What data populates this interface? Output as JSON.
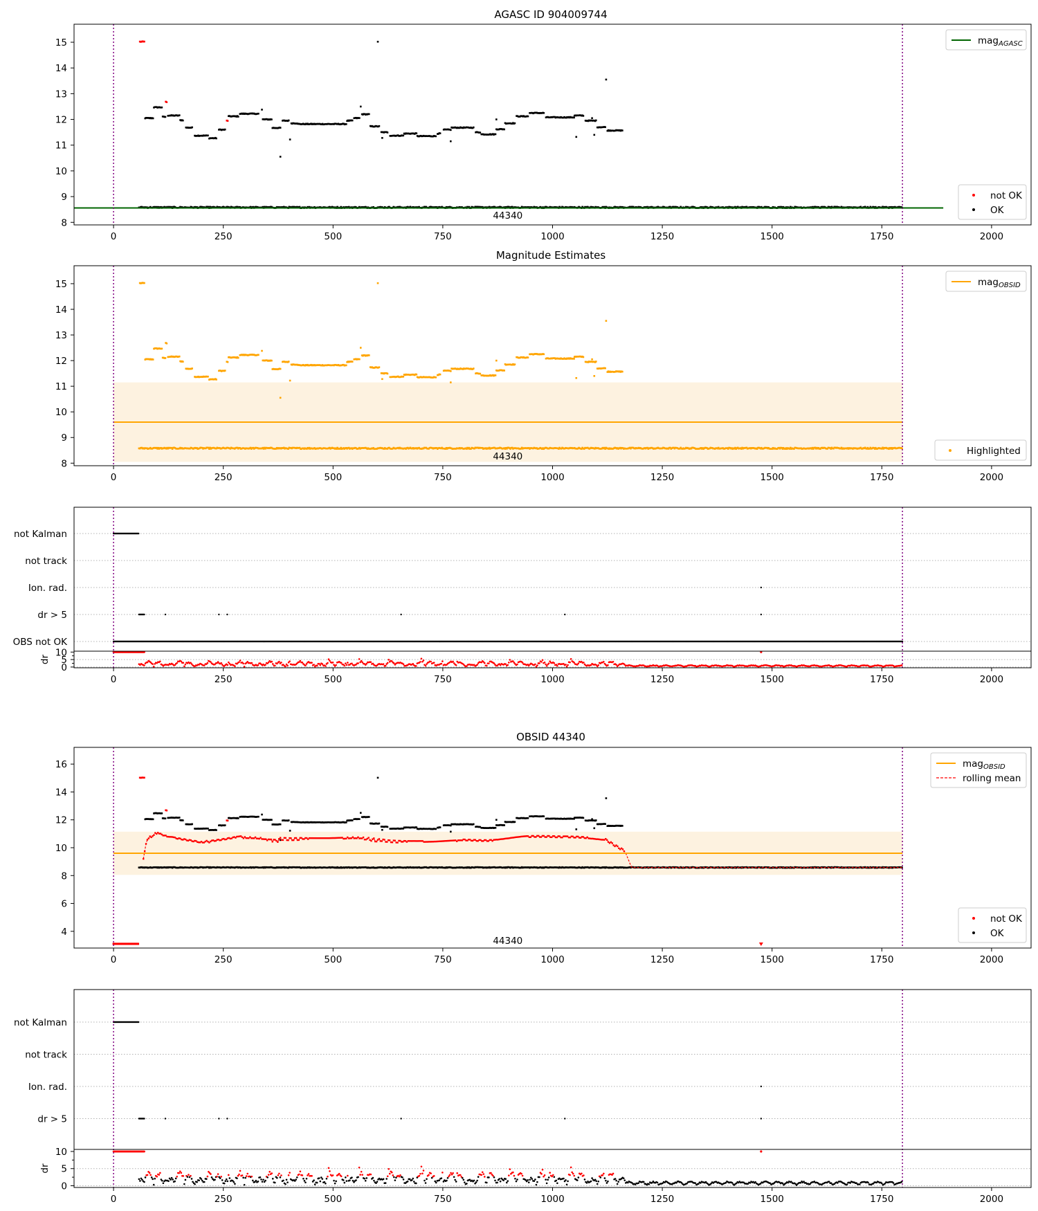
{
  "figure": {
    "title_top": "AGASC ID 904009744",
    "title_est": "Magnitude Estimates",
    "title_obs": "OBSID 44340",
    "obsid_label": "44340"
  },
  "colors": {
    "not_ok": "#ff0000",
    "ok": "#000000",
    "agasc_line": "#006400",
    "obsid_line": "#ffa500",
    "band": "#fdf2e0",
    "boundary": "#800080",
    "rolling": "#ff0000",
    "grid": "#b0b0b0"
  },
  "chart_data": [
    {
      "id": "agasc",
      "type": "scatter",
      "title": "AGASC ID 904009744",
      "xlim": [
        -90,
        2090
      ],
      "ylim": [
        7.9,
        15.7
      ],
      "yticks": [
        8,
        9,
        10,
        11,
        12,
        13,
        14,
        15
      ],
      "xticks": [
        0,
        250,
        500,
        750,
        1000,
        1250,
        1500,
        1750,
        2000
      ],
      "lines": [
        {
          "name": "mag_AGASC",
          "y": 8.56,
          "x": [
            -90,
            1890
          ],
          "color": "agasc_line"
        }
      ],
      "legend_upper": [
        {
          "label": "mag",
          "sub": "AGASC",
          "kind": "line",
          "color": "agasc_line"
        }
      ],
      "legend_lower": [
        {
          "label": "not OK",
          "kind": "dot",
          "color": "not_ok"
        },
        {
          "label": "OK",
          "kind": "dot",
          "color": "ok"
        }
      ],
      "boundaries": [
        0,
        1797
      ],
      "obs_label": "44340",
      "obs_label_x": 898,
      "obs_label_y": 8.28,
      "notok_color": "not_ok",
      "ok_color": "ok"
    },
    {
      "id": "estimates",
      "type": "scatter",
      "title": "Magnitude Estimates",
      "xlim": [
        -90,
        2090
      ],
      "ylim": [
        7.9,
        15.7
      ],
      "yticks": [
        8,
        9,
        10,
        11,
        12,
        13,
        14,
        15
      ],
      "xticks": [
        0,
        250,
        500,
        750,
        1000,
        1250,
        1500,
        1750,
        2000
      ],
      "lines": [
        {
          "name": "mag_OBSID",
          "y": 9.6,
          "x": [
            0,
            1797
          ],
          "color": "obsid_line"
        }
      ],
      "band": {
        "x": [
          0,
          1797
        ],
        "y": [
          8.05,
          11.15
        ]
      },
      "legend_upper": [
        {
          "label": "mag",
          "sub": "OBSID",
          "kind": "line",
          "color": "obsid_line"
        }
      ],
      "legend_lower": [
        {
          "label": "Highlighted",
          "kind": "dot",
          "color": "obsid_line"
        }
      ],
      "boundaries": [
        0,
        1797
      ],
      "obs_label": "44340",
      "obs_label_x": 898,
      "obs_label_y": 8.28,
      "notok_color": "obsid_line",
      "ok_color": "obsid_line"
    },
    {
      "id": "flags1",
      "type": "scatter",
      "xlim": [
        -90,
        2090
      ],
      "categories": [
        "not Kalman",
        "not track",
        "Ion. rad.",
        "dr > 5",
        "OBS not OK"
      ],
      "flag_points": {
        "not Kalman": {
          "ranges": [
            [
              0,
              57
            ]
          ],
          "singles": []
        },
        "not track": {
          "ranges": [],
          "singles": []
        },
        "Ion. rad.": {
          "ranges": [],
          "singles": [
            1475
          ]
        },
        "dr > 5": {
          "ranges": [
            [
              58,
              70
            ]
          ],
          "singles": [
            118,
            240,
            259,
            655,
            1028,
            1475
          ]
        },
        "OBS not OK": {
          "ranges": [
            [
              0,
              1797
            ]
          ],
          "singles": []
        }
      },
      "dr_ylabel": "dr",
      "dr_ylim": [
        -0.5,
        10.6
      ],
      "dr_yticks": [
        0,
        5,
        10
      ],
      "dr_color_mode": "red",
      "xticks": [
        0,
        250,
        500,
        750,
        1000,
        1250,
        1500,
        1750,
        2000
      ],
      "boundaries": [
        0,
        1797
      ]
    },
    {
      "id": "obsid",
      "type": "scatter",
      "title": "OBSID 44340",
      "xlim": [
        -90,
        2090
      ],
      "ylim": [
        2.8,
        17.2
      ],
      "yticks": [
        4,
        6,
        8,
        10,
        12,
        14,
        16
      ],
      "xticks": [
        0,
        250,
        500,
        750,
        1000,
        1250,
        1500,
        1750,
        2000
      ],
      "lines": [
        {
          "name": "mag_OBSID",
          "y": 9.6,
          "x": [
            0,
            1797
          ],
          "color": "obsid_line"
        }
      ],
      "band": {
        "x": [
          0,
          1797
        ],
        "y": [
          8.05,
          11.15
        ]
      },
      "legend_upper": [
        {
          "label": "mag",
          "sub": "OBSID",
          "kind": "line",
          "color": "obsid_line"
        },
        {
          "label": "rolling mean",
          "kind": "dash",
          "color": "rolling"
        }
      ],
      "legend_lower": [
        {
          "label": "not OK",
          "kind": "dot",
          "color": "not_ok"
        },
        {
          "label": "OK",
          "kind": "dot",
          "color": "ok"
        }
      ],
      "boundaries": [
        0,
        1797
      ],
      "obs_label": "44340",
      "obs_label_x": 898,
      "obs_label_y": 3.35,
      "notok_color": "not_ok",
      "ok_color": "ok",
      "floor_value": 3.1
    },
    {
      "id": "flags2",
      "type": "scatter",
      "xlim": [
        -90,
        2090
      ],
      "categories": [
        "not Kalman",
        "not track",
        "Ion. rad.",
        "dr > 5"
      ],
      "flag_points": {
        "not Kalman": {
          "ranges": [
            [
              0,
              57
            ]
          ],
          "singles": []
        },
        "not track": {
          "ranges": [],
          "singles": []
        },
        "Ion. rad.": {
          "ranges": [],
          "singles": [
            1475
          ]
        },
        "dr > 5": {
          "ranges": [
            [
              58,
              70
            ]
          ],
          "singles": [
            118,
            240,
            259,
            655,
            1028,
            1475
          ]
        }
      },
      "dr_ylabel": "dr",
      "dr_ylim": [
        -0.5,
        10.6
      ],
      "dr_yticks": [
        0,
        5,
        10
      ],
      "dr_color_mode": "mixed",
      "xticks": [
        0,
        250,
        500,
        750,
        1000,
        1250,
        1500,
        1750,
        2000
      ],
      "boundaries": [
        0,
        1797
      ]
    }
  ],
  "star_data": {
    "x_start": 0,
    "x_end": 1797,
    "track_start": 58,
    "bright_end": 1165,
    "base_mag": 8.58,
    "not_kalman_end": 57,
    "segments": [
      {
        "x": [
          60,
          70
        ],
        "mag": 15.02,
        "ok": false
      },
      {
        "x": [
          72,
          90
        ],
        "mag": 12.05,
        "ok": true
      },
      {
        "x": [
          92,
          110
        ],
        "mag": 12.47,
        "ok": true
      },
      {
        "x": [
          112,
          118
        ],
        "mag": 12.1,
        "ok": true
      },
      {
        "x": [
          119,
          122
        ],
        "mag": 12.68,
        "ok": false
      },
      {
        "x": [
          124,
          150
        ],
        "mag": 12.15,
        "ok": true
      },
      {
        "x": [
          152,
          158
        ],
        "mag": 11.97,
        "ok": true
      },
      {
        "x": [
          165,
          180
        ],
        "mag": 11.68,
        "ok": true
      },
      {
        "x": [
          185,
          215
        ],
        "mag": 11.37,
        "ok": true
      },
      {
        "x": [
          218,
          235
        ],
        "mag": 11.27,
        "ok": true
      },
      {
        "x": [
          240,
          255
        ],
        "mag": 11.6,
        "ok": true
      },
      {
        "x": [
          258,
          260
        ],
        "mag": 11.95,
        "ok": false
      },
      {
        "x": [
          262,
          285
        ],
        "mag": 12.12,
        "ok": true
      },
      {
        "x": [
          288,
          330
        ],
        "mag": 12.22,
        "ok": true
      },
      {
        "x": [
          340,
          360
        ],
        "mag": 12.0,
        "ok": true
      },
      {
        "x": [
          362,
          380
        ],
        "mag": 11.67,
        "ok": true
      },
      {
        "x": [
          385,
          400
        ],
        "mag": 11.95,
        "ok": true
      },
      {
        "x": [
          405,
          420
        ],
        "mag": 11.85,
        "ok": true
      },
      {
        "x": [
          420,
          530
        ],
        "mag": 11.82,
        "ok": true
      },
      {
        "x": [
          532,
          545
        ],
        "mag": 11.95,
        "ok": true
      },
      {
        "x": [
          548,
          560
        ],
        "mag": 12.05,
        "ok": true
      },
      {
        "x": [
          566,
          582
        ],
        "mag": 12.2,
        "ok": true
      },
      {
        "x": [
          585,
          605
        ],
        "mag": 11.73,
        "ok": true
      },
      {
        "x": [
          610,
          625
        ],
        "mag": 11.5,
        "ok": true
      },
      {
        "x": [
          630,
          660
        ],
        "mag": 11.37,
        "ok": true
      },
      {
        "x": [
          662,
          690
        ],
        "mag": 11.45,
        "ok": true
      },
      {
        "x": [
          692,
          735
        ],
        "mag": 11.35,
        "ok": true
      },
      {
        "x": [
          738,
          745
        ],
        "mag": 11.45,
        "ok": true
      },
      {
        "x": [
          752,
          768
        ],
        "mag": 11.6,
        "ok": true
      },
      {
        "x": [
          770,
          820
        ],
        "mag": 11.68,
        "ok": true
      },
      {
        "x": [
          825,
          835
        ],
        "mag": 11.5,
        "ok": true
      },
      {
        "x": [
          838,
          870
        ],
        "mag": 11.42,
        "ok": true
      },
      {
        "x": [
          872,
          890
        ],
        "mag": 11.62,
        "ok": true
      },
      {
        "x": [
          892,
          915
        ],
        "mag": 11.85,
        "ok": true
      },
      {
        "x": [
          918,
          945
        ],
        "mag": 12.12,
        "ok": true
      },
      {
        "x": [
          948,
          980
        ],
        "mag": 12.25,
        "ok": true
      },
      {
        "x": [
          985,
          1050
        ],
        "mag": 12.08,
        "ok": true
      },
      {
        "x": [
          1050,
          1070
        ],
        "mag": 12.15,
        "ok": true
      },
      {
        "x": [
          1075,
          1100
        ],
        "mag": 11.95,
        "ok": true
      },
      {
        "x": [
          1102,
          1120
        ],
        "mag": 11.7,
        "ok": true
      },
      {
        "x": [
          1125,
          1160
        ],
        "mag": 11.57,
        "ok": true
      }
    ],
    "outliers": [
      {
        "x": 602,
        "mag": 15.02,
        "ok": true
      },
      {
        "x": 1122,
        "mag": 13.55,
        "ok": true
      },
      {
        "x": 380,
        "mag": 10.55,
        "ok": true
      },
      {
        "x": 402,
        "mag": 11.22,
        "ok": true
      },
      {
        "x": 338,
        "mag": 12.38,
        "ok": true
      },
      {
        "x": 563,
        "mag": 12.5,
        "ok": true
      },
      {
        "x": 1054,
        "mag": 11.32,
        "ok": true
      },
      {
        "x": 1095,
        "mag": 11.4,
        "ok": true
      },
      {
        "x": 768,
        "mag": 11.15,
        "ok": true
      },
      {
        "x": 612,
        "mag": 11.28,
        "ok": true
      },
      {
        "x": 872,
        "mag": 12.0,
        "ok": true
      },
      {
        "x": 1090,
        "mag": 12.05,
        "ok": true
      }
    ]
  }
}
